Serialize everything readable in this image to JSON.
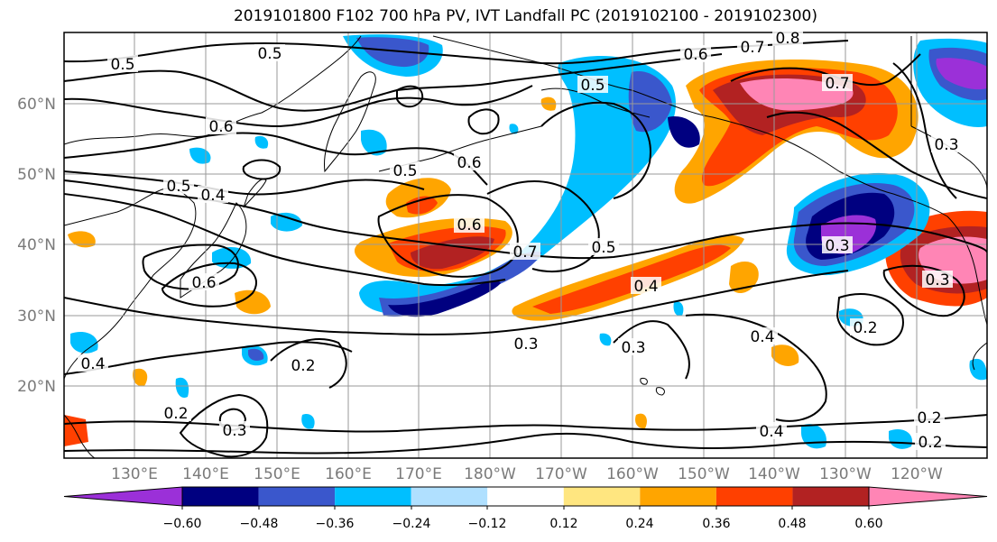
{
  "title": "2019101800 F102 700 hPa PV, IVT Landfall PC (2019102100 - 2019102300)",
  "lat_labels": [
    "60°N",
    "50°N",
    "40°N",
    "30°N",
    "20°N"
  ],
  "lon_labels": [
    "130°E",
    "140°E",
    "150°E",
    "160°E",
    "170°E",
    "180°W",
    "170°W",
    "160°W",
    "150°W",
    "140°W",
    "130°W",
    "120°W"
  ],
  "colorbar": {
    "colors": [
      "#9b30d8",
      "#000080",
      "#3a57cc",
      "#00bfff",
      "#b0e0ff",
      "#ffffff",
      "#ffe680",
      "#ffa500",
      "#ff4000",
      "#b22222",
      "#ff85b5"
    ],
    "ticks": [
      "−0.60",
      "−0.48",
      "−0.36",
      "−0.24",
      "−0.12",
      "0.12",
      "0.24",
      "0.36",
      "0.48",
      "0.60"
    ]
  },
  "contour_labels": [
    "0.5",
    "0.5",
    "0.7",
    "0.8",
    "0.6",
    "0.7",
    "0.6",
    "0.5",
    "0.4",
    "0.6",
    "0.5",
    "0.6",
    "0.7",
    "0.5",
    "0.5",
    "0.3",
    "0.6",
    "0.4",
    "0.3",
    "0.3",
    "0.2",
    "0.3",
    "0.2",
    "0.4",
    "0.4",
    "0.2",
    "0.4",
    "0.2",
    "0.3",
    "0.2",
    "0.3"
  ]
}
